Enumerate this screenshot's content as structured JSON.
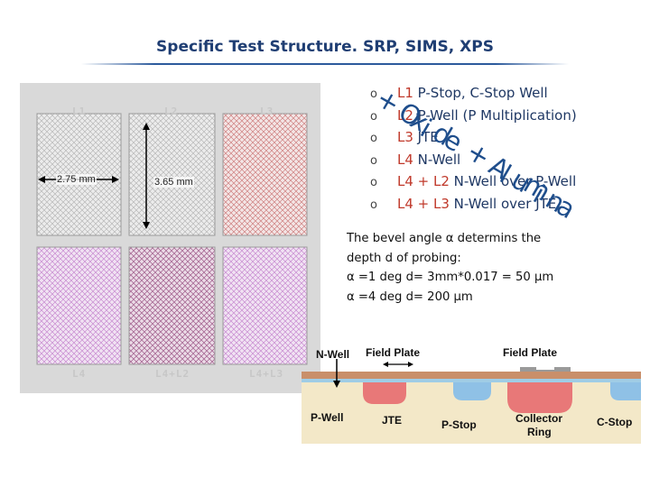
{
  "title": "Specific Test Structure. SRP, SIMS, XPS",
  "mask_layout": {
    "cells": [
      {
        "label": "L1"
      },
      {
        "label": "L2"
      },
      {
        "label": "L3"
      },
      {
        "label": "L4"
      },
      {
        "label": "L4+L2"
      },
      {
        "label": "L4+L3"
      }
    ],
    "dim_width": "2.75 mm",
    "dim_height": "3.65 mm"
  },
  "bullets": [
    {
      "level": "L1",
      "text": " P-Stop, C-Stop Well"
    },
    {
      "level": "L2",
      "text": " P-Well (P Multiplication)"
    },
    {
      "level": "L3",
      "text": " JTE"
    },
    {
      "level": "L4",
      "text": " N-Well"
    },
    {
      "level": "L4 + L2",
      "text": " N-Well over P-Well"
    },
    {
      "level": "L4 + L3",
      "text": " N-Well over JTE"
    }
  ],
  "bullet_marker": "o",
  "overlay_text": "+ Oxide + Alumina",
  "paragraph": [
    "The bevel angle α determins the",
    "depth d of probing:",
    "α =1 deg d= 3mm*0.017 = 50 μm",
    "α =4 deg d= 200 μm"
  ],
  "cross_section": {
    "label_nwell": "N-Well",
    "label_field_plate_1": "Field Plate",
    "label_field_plate_2": "Field Plate",
    "label_pwell": "P-Well",
    "label_jte": "JTE",
    "label_pstop": "P-Stop",
    "label_collector": "Collector",
    "label_ring": "Ring",
    "label_cstop": "C-Stop"
  },
  "colors": {
    "title": "#1f3e73",
    "bullet_level": "#c0392b",
    "overlay": "#1f4e8c",
    "cell_gray": "#e6e6e6",
    "cell_red": "#d98c8c",
    "cell_pink": "#c98bd1",
    "cell_magenta": "#c0669a",
    "implant_red": "#e87878",
    "implant_blue": "#8fc1e6",
    "substrate": "#f3e8c8"
  }
}
